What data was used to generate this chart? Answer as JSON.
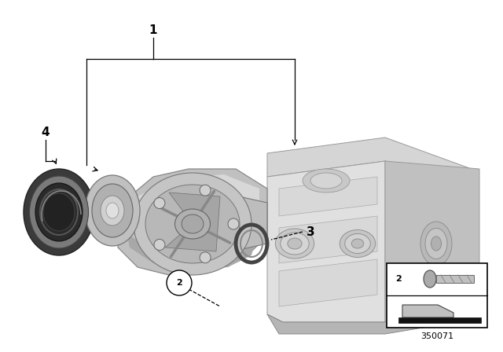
{
  "background_color": "#ffffff",
  "part_number": "350071",
  "colors": {
    "housing_top": "#d8d8d8",
    "housing_front": "#e2e2e2",
    "housing_right": "#c5c5c5",
    "housing_shadow": "#b0b0b0",
    "support_body": "#b8b8b8",
    "support_light": "#d0d0d0",
    "support_dark": "#909090",
    "seal_dark": "#3a3a3a",
    "seal_mid": "#6a6a6a",
    "seal_light": "#aaaaaa",
    "line_color": "#000000"
  }
}
